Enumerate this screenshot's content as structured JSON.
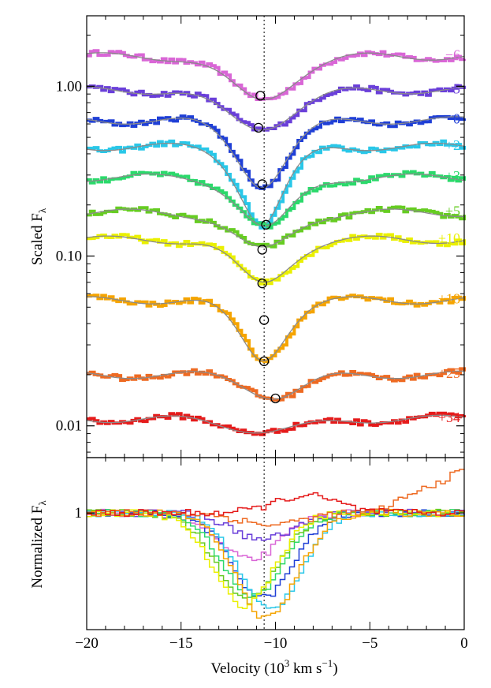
{
  "chart_data": [
    {
      "type": "line",
      "panel": "top",
      "ylabel": "Scaled F",
      "ylabel_sub": "λ",
      "yscale": "log",
      "xlim": [
        -20,
        0
      ],
      "ylim": [
        0.0065,
        2.6
      ],
      "yticks": [
        1.0,
        0.1,
        0.01
      ],
      "ytick_labels": [
        "1.00",
        "0.10",
        "0.01"
      ],
      "reference_line_x": -10.6,
      "series": [
        {
          "name": "−6",
          "color": "#d966d6",
          "level": 1.5,
          "depth": 0.45,
          "min_x": -10.8,
          "width": 2.6
        },
        {
          "name": "−5",
          "color": "#6a3fd9",
          "level": 0.95,
          "depth": 0.4,
          "min_x": -10.9,
          "width": 2.8
        },
        {
          "name": "0",
          "color": "#1f3fd6",
          "level": 0.63,
          "depth": 0.58,
          "min_x": -10.7,
          "width": 2.2
        },
        {
          "name": "+2",
          "color": "#29c7e8",
          "level": 0.44,
          "depth": 0.65,
          "min_x": -10.7,
          "width": 2.0
        },
        {
          "name": "+3",
          "color": "#2bd96b",
          "level": 0.29,
          "depth": 0.5,
          "min_x": -10.5,
          "width": 2.2
        },
        {
          "name": "+5",
          "color": "#66cc22",
          "level": 0.18,
          "depth": 0.4,
          "min_x": -10.7,
          "width": 2.3
        },
        {
          "name": "+10",
          "color": "#eaf000",
          "level": 0.125,
          "depth": 0.45,
          "min_x": -10.7,
          "width": 2.2
        },
        {
          "name": "+18",
          "color": "#f5a400",
          "level": 0.055,
          "depth": 0.55,
          "min_x": -10.7,
          "width": 2.0
        },
        {
          "name": "+25",
          "color": "#ee6a22",
          "level": 0.02,
          "depth": 0.25,
          "min_x": -10.0,
          "width": 2.2
        },
        {
          "name": "+34",
          "color": "#e51b1b",
          "level": 0.011,
          "depth": 0.15,
          "min_x": -10.3,
          "width": 3.0
        }
      ],
      "markers": [
        {
          "x": -10.8,
          "y": 0.88
        },
        {
          "x": -10.9,
          "y": 0.57
        },
        {
          "x": -10.7,
          "y": 0.265
        },
        {
          "x": -10.5,
          "y": 0.153
        },
        {
          "x": -10.7,
          "y": 0.109
        },
        {
          "x": -10.7,
          "y": 0.069
        },
        {
          "x": -10.6,
          "y": 0.042
        },
        {
          "x": -10.6,
          "y": 0.024
        },
        {
          "x": -10.0,
          "y": 0.0145
        }
      ]
    },
    {
      "type": "line",
      "panel": "bottom",
      "xlabel": "Velocity (10",
      "xlabel_sup": "3",
      "xlabel_end": " km s",
      "xlabel_sup2": "−1",
      "xlabel_close": ")",
      "ylabel": "Normalized F",
      "ylabel_sub": "λ",
      "xlim": [
        -20,
        0
      ],
      "xticks": [
        -20,
        -15,
        -10,
        -5,
        0
      ],
      "xtick_labels": [
        "−20",
        "−15",
        "−10",
        "−5",
        "0"
      ],
      "ylim": [
        0.2,
        1.38
      ],
      "yticks": [
        1
      ],
      "ytick_labels": [
        "1"
      ],
      "series": [
        {
          "name": "−6",
          "color": "#d966d6",
          "depth": 0.32,
          "min_x": -11.5
        },
        {
          "name": "−5",
          "color": "#6a3fd9",
          "depth": 0.18,
          "min_x": -10.8
        },
        {
          "name": "0",
          "color": "#1f3fd6",
          "depth": 0.58,
          "min_x": -10.8
        },
        {
          "name": "+2",
          "color": "#29c7e8",
          "depth": 0.66,
          "min_x": -10.4
        },
        {
          "name": "+3",
          "color": "#2bd96b",
          "depth": 0.57,
          "min_x": -11.3
        },
        {
          "name": "+5",
          "color": "#66cc22",
          "depth": 0.6,
          "min_x": -11.6
        },
        {
          "name": "+10",
          "color": "#eaf000",
          "depth": 0.63,
          "min_x": -11.8
        },
        {
          "name": "+18",
          "color": "#f5a400",
          "depth": 0.72,
          "min_x": -10.6
        },
        {
          "name": "+25",
          "color": "#ee6a22",
          "depth": 0.08,
          "min_x": -10.4
        },
        {
          "name": "+34",
          "color": "#e51b1b",
          "depth": -0.12,
          "min_x": -8.5
        }
      ]
    }
  ]
}
